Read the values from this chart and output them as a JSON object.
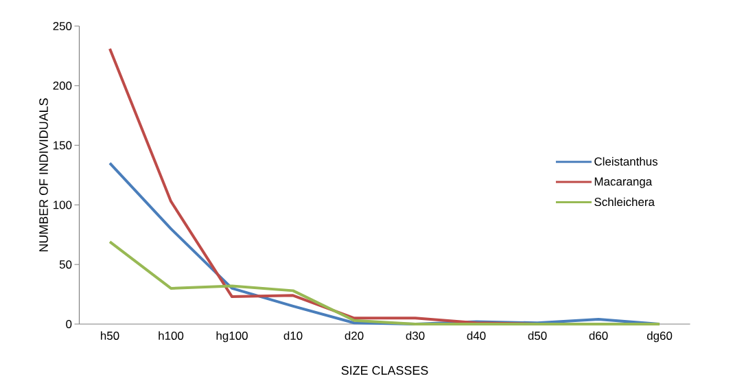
{
  "chart_data": {
    "type": "line",
    "xlabel": "SIZE CLASSES",
    "ylabel": "NUMBER OF INDIVIDUALS",
    "categories": [
      "h50",
      "h100",
      "hg100",
      "d10",
      "d20",
      "d30",
      "d40",
      "d50",
      "d60",
      "dg60"
    ],
    "series": [
      {
        "name": "Cleistanthus",
        "color": "#4a7ebb",
        "values": [
          135,
          80,
          30,
          15,
          1,
          0,
          2,
          1,
          4,
          0
        ]
      },
      {
        "name": "Macaranga",
        "color": "#be4b48",
        "values": [
          231,
          103,
          23,
          24,
          5,
          5,
          1,
          0,
          null,
          null
        ]
      },
      {
        "name": "Schleichera",
        "color": "#98b954",
        "values": [
          69,
          30,
          32,
          28,
          3,
          0,
          0,
          0,
          0,
          0
        ]
      }
    ],
    "ylim": [
      0,
      250
    ],
    "yticks": [
      0,
      50,
      100,
      150,
      200,
      250
    ],
    "grid": false,
    "legend": "right",
    "marker": "none",
    "line_style": "solid"
  }
}
